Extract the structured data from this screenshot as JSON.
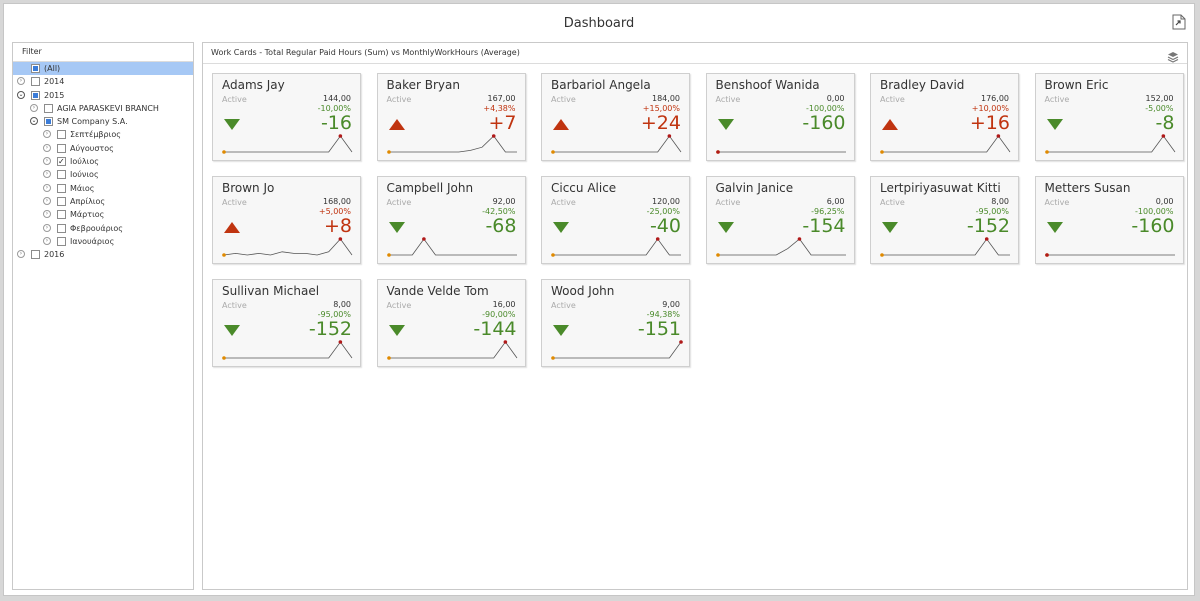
{
  "window": {
    "title": "Dashboard",
    "export_icon": "export-icon"
  },
  "filter": {
    "caption": "Filter",
    "items": [
      {
        "label": "(All)",
        "level": 0,
        "expander": "none",
        "check": "partial",
        "selected": true
      },
      {
        "label": "2014",
        "level": 0,
        "expander": "collapsed",
        "check": "none"
      },
      {
        "label": "2015",
        "level": 0,
        "expander": "expanded",
        "check": "partial"
      },
      {
        "label": "AGIA PARASKEVI BRANCH",
        "level": 1,
        "expander": "collapsed",
        "check": "none"
      },
      {
        "label": "SM Company S.A.",
        "level": 1,
        "expander": "expanded",
        "check": "partial"
      },
      {
        "label": "Σεπτέμβριος",
        "level": 2,
        "expander": "collapsed",
        "check": "none"
      },
      {
        "label": "Αύγουστος",
        "level": 2,
        "expander": "collapsed",
        "check": "none"
      },
      {
        "label": "Ιούλιος",
        "level": 2,
        "expander": "collapsed",
        "check": "checked"
      },
      {
        "label": "Ιούνιος",
        "level": 2,
        "expander": "collapsed",
        "check": "none"
      },
      {
        "label": "Μάιος",
        "level": 2,
        "expander": "collapsed",
        "check": "none"
      },
      {
        "label": "Απρίλιος",
        "level": 2,
        "expander": "collapsed",
        "check": "none"
      },
      {
        "label": "Μάρτιος",
        "level": 2,
        "expander": "collapsed",
        "check": "none"
      },
      {
        "label": "Φεβρουάριος",
        "level": 2,
        "expander": "collapsed",
        "check": "none"
      },
      {
        "label": "Ιανουάριος",
        "level": 2,
        "expander": "collapsed",
        "check": "none"
      },
      {
        "label": "2016",
        "level": 0,
        "expander": "collapsed",
        "check": "none"
      }
    ]
  },
  "cards_panel": {
    "caption": "Work Cards - Total Regular Paid Hours (Sum) vs MonthlyWorkHours (Average)",
    "layers_icon": "layers-icon"
  },
  "colors": {
    "negative": "#4a8a2a",
    "positive": "#c03410",
    "spark_line": "#555555",
    "spark_start": "#e08a00",
    "spark_end": "#b01a1a"
  },
  "cards": [
    {
      "name": "Adams Jay",
      "status": "Active",
      "actual": "144,00",
      "pct": "-10,00%",
      "delta": "-16",
      "trend": "down",
      "spark": [
        0,
        0,
        0,
        0,
        0,
        0,
        0,
        0,
        0,
        0,
        1,
        0
      ]
    },
    {
      "name": "Baker Bryan",
      "status": "Active",
      "actual": "167,00",
      "pct": "+4,38%",
      "delta": "+7",
      "trend": "up",
      "spark": [
        0,
        0,
        0,
        0,
        0,
        0,
        0,
        0.1,
        0.3,
        1,
        0,
        0
      ]
    },
    {
      "name": "Barbariol Angela",
      "status": "Active",
      "actual": "184,00",
      "pct": "+15,00%",
      "delta": "+24",
      "trend": "up",
      "spark": [
        0,
        0,
        0,
        0,
        0,
        0,
        0,
        0,
        0,
        0,
        1,
        0
      ]
    },
    {
      "name": "Benshoof Wanida",
      "status": "Active",
      "actual": "0,00",
      "pct": "-100,00%",
      "delta": "-160",
      "trend": "down",
      "spark": [
        0,
        0,
        0,
        0,
        0,
        0,
        0,
        0,
        0,
        0,
        0,
        0
      ]
    },
    {
      "name": "Bradley David",
      "status": "Active",
      "actual": "176,00",
      "pct": "+10,00%",
      "delta": "+16",
      "trend": "up",
      "spark": [
        0,
        0,
        0,
        0,
        0,
        0,
        0,
        0,
        0,
        0,
        1,
        0
      ]
    },
    {
      "name": "Brown Eric",
      "status": "Active",
      "actual": "152,00",
      "pct": "-5,00%",
      "delta": "-8",
      "trend": "down",
      "spark": [
        0,
        0,
        0,
        0,
        0,
        0,
        0,
        0,
        0,
        0,
        1,
        0
      ]
    },
    {
      "name": "Brown Jo",
      "status": "Active",
      "actual": "168,00",
      "pct": "+5,00%",
      "delta": "+8",
      "trend": "up",
      "spark": [
        0,
        0.1,
        0,
        0.1,
        0,
        0.2,
        0.1,
        0.1,
        0,
        0.2,
        1,
        0
      ]
    },
    {
      "name": "Campbell John",
      "status": "Active",
      "actual": "92,00",
      "pct": "-42,50%",
      "delta": "-68",
      "trend": "down",
      "spark": [
        0,
        0,
        0,
        1,
        0,
        0,
        0,
        0,
        0,
        0,
        0,
        0
      ]
    },
    {
      "name": "Ciccu Alice",
      "status": "Active",
      "actual": "120,00",
      "pct": "-25,00%",
      "delta": "-40",
      "trend": "down",
      "spark": [
        0,
        0,
        0,
        0,
        0,
        0,
        0,
        0,
        0,
        1,
        0,
        0
      ]
    },
    {
      "name": "Galvin Janice",
      "status": "Active",
      "actual": "6,00",
      "pct": "-96,25%",
      "delta": "-154",
      "trend": "down",
      "spark": [
        0,
        0,
        0,
        0,
        0,
        0,
        0.4,
        1,
        0,
        0,
        0,
        0
      ]
    },
    {
      "name": "Lertpiriyasuwat Kitti",
      "status": "Active",
      "actual": "8,00",
      "pct": "-95,00%",
      "delta": "-152",
      "trend": "down",
      "spark": [
        0,
        0,
        0,
        0,
        0,
        0,
        0,
        0,
        0,
        1,
        0,
        0
      ]
    },
    {
      "name": "Metters Susan",
      "status": "Active",
      "actual": "0,00",
      "pct": "-100,00%",
      "delta": "-160",
      "trend": "down",
      "spark": [
        0,
        0,
        0,
        0,
        0,
        0,
        0,
        0,
        0,
        0,
        0,
        0
      ]
    },
    {
      "name": "Sullivan Michael",
      "status": "Active",
      "actual": "8,00",
      "pct": "-95,00%",
      "delta": "-152",
      "trend": "down",
      "spark": [
        0,
        0,
        0,
        0,
        0,
        0,
        0,
        0,
        0,
        0,
        1,
        0
      ]
    },
    {
      "name": "Vande Velde Tom",
      "status": "Active",
      "actual": "16,00",
      "pct": "-90,00%",
      "delta": "-144",
      "trend": "down",
      "spark": [
        0,
        0,
        0,
        0,
        0,
        0,
        0,
        0,
        0,
        0,
        1,
        0
      ]
    },
    {
      "name": "Wood John",
      "status": "Active",
      "actual": "9,00",
      "pct": "-94,38%",
      "delta": "-151",
      "trend": "down",
      "spark": [
        0,
        0,
        0,
        0,
        0,
        0,
        0,
        0,
        0,
        0,
        0,
        1
      ]
    }
  ]
}
